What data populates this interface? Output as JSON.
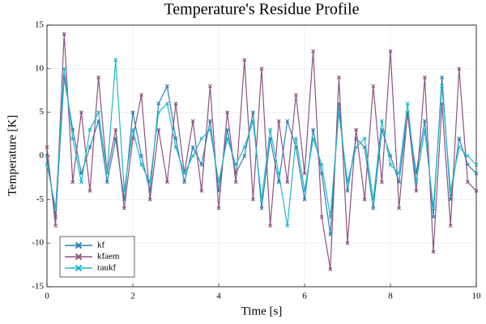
{
  "chart_data": {
    "type": "line",
    "title": "Temperature's Residue Profile",
    "xlabel": "Time [s]",
    "ylabel": "Temperature [K]",
    "x": [
      0,
      0.2,
      0.4,
      0.6,
      0.8,
      1,
      1.2,
      1.4,
      1.6,
      1.8,
      2,
      2.2,
      2.4,
      2.6,
      2.8,
      3,
      3.2,
      3.4,
      3.6,
      3.8,
      4,
      4.2,
      4.4,
      4.6,
      4.8,
      5,
      5.2,
      5.4,
      5.6,
      5.8,
      6,
      6.2,
      6.4,
      6.6,
      6.8,
      7,
      7.2,
      7.4,
      7.6,
      7.8,
      8,
      8.2,
      8.4,
      8.6,
      8.8,
      9,
      9.2,
      9.4,
      9.6,
      9.8,
      10
    ],
    "series": [
      {
        "name": "kf",
        "color": "#2e7fb8",
        "values": [
          0,
          -7,
          9,
          3,
          -2,
          1,
          4,
          -3,
          2,
          -5,
          5,
          0,
          -4,
          6,
          8,
          2,
          -3,
          1,
          -1,
          4,
          -4,
          3,
          -2,
          0,
          5,
          -6,
          2,
          -3,
          4,
          1,
          -5,
          3,
          -2,
          -9,
          6,
          -4,
          2,
          1,
          -6,
          3,
          0,
          -3,
          5,
          -2,
          4,
          -7,
          9,
          -5,
          2,
          -1,
          -2
        ]
      },
      {
        "name": "kfaem",
        "color": "#8e5381",
        "values": [
          1,
          -8,
          14,
          -3,
          5,
          -4,
          9,
          -2,
          3,
          -6,
          2,
          7,
          -5,
          3,
          -3,
          6,
          -2,
          4,
          -4,
          8,
          -6,
          5,
          -3,
          11,
          -5,
          10,
          -8,
          4,
          -3,
          7,
          -2,
          12,
          -7,
          -13,
          9,
          -10,
          3,
          -5,
          8,
          -3,
          12,
          -6,
          5,
          -4,
          9,
          -11,
          6,
          -8,
          10,
          -3,
          -4
        ]
      },
      {
        "name": "raukf",
        "color": "#1fb8cc",
        "values": [
          -1,
          -6,
          10,
          2,
          -3,
          3,
          5,
          -2,
          11,
          -4,
          3,
          -1,
          -3,
          5,
          6,
          1,
          -2,
          0,
          2,
          3,
          -3,
          2,
          -1,
          1,
          4,
          -5,
          3,
          -2,
          -8,
          2,
          -4,
          2,
          -1,
          -7,
          5,
          -3,
          1,
          2,
          -5,
          4,
          -1,
          -2,
          6,
          -3,
          3,
          -6,
          8,
          -4,
          1,
          0,
          -1
        ]
      }
    ],
    "xlim": [
      0,
      10
    ],
    "xticks": [
      0,
      2,
      4,
      6,
      8,
      10
    ],
    "ylim": [
      -15,
      15
    ],
    "yticks": [
      -15,
      -10,
      -5,
      0,
      5,
      10,
      15
    ],
    "grid": true,
    "legend": "bottom-left"
  }
}
